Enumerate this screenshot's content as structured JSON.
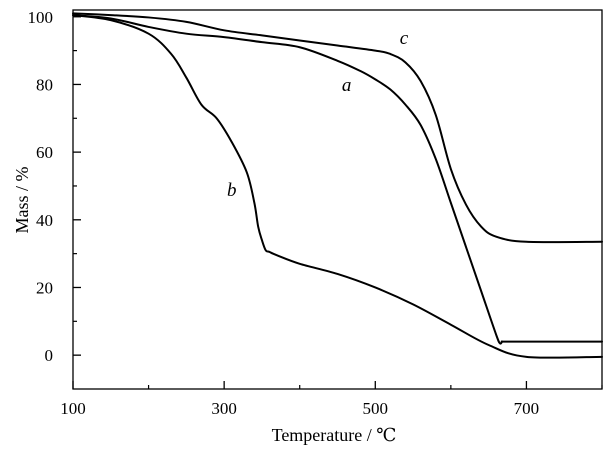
{
  "chart_data": {
    "type": "line",
    "title": "",
    "xlabel": "Temperature / ℃",
    "ylabel": "Mass / %",
    "xlim": [
      100,
      800
    ],
    "ylim": [
      -10,
      102
    ],
    "x_ticks": [
      100,
      300,
      500,
      700
    ],
    "x_minor_ticks": [
      200,
      400,
      600,
      800
    ],
    "y_ticks": [
      0,
      20,
      40,
      60,
      80,
      100
    ],
    "y_minor_ticks": [
      10,
      30,
      50,
      70,
      90
    ],
    "grid": false,
    "legend": "none",
    "line_color": "#000000",
    "series": [
      {
        "name": "a",
        "x": [
          100,
          150,
          200,
          250,
          300,
          350,
          400,
          450,
          480,
          500,
          520,
          540,
          560,
          580,
          600,
          620,
          640,
          660,
          665,
          668,
          670,
          700,
          800
        ],
        "y": [
          100.5,
          99.5,
          97,
          95,
          94,
          92.5,
          91,
          87,
          84,
          81.5,
          78.5,
          74,
          68,
          58,
          45,
          32,
          19,
          6,
          3.5,
          4,
          4,
          4,
          4
        ]
      },
      {
        "name": "b",
        "x": [
          100,
          150,
          200,
          230,
          250,
          270,
          290,
          310,
          330,
          340,
          345,
          350,
          355,
          360,
          370,
          400,
          450,
          500,
          550,
          600,
          650,
          700,
          800
        ],
        "y": [
          100.5,
          99,
          95,
          89,
          82,
          74,
          70,
          63,
          54,
          45,
          38,
          34,
          31,
          30.5,
          29.5,
          27,
          24,
          20,
          15,
          9,
          3,
          -0.5,
          -0.5
        ]
      },
      {
        "name": "c",
        "x": [
          100,
          150,
          200,
          250,
          300,
          350,
          400,
          450,
          500,
          520,
          540,
          560,
          580,
          600,
          620,
          640,
          660,
          700,
          800
        ],
        "y": [
          101,
          100.5,
          99.8,
          98.5,
          96,
          94.5,
          93,
          91.5,
          90,
          89,
          86.5,
          81,
          71,
          55,
          44.5,
          38,
          35,
          33.5,
          33.5
        ]
      }
    ],
    "annotations": [
      {
        "text": "a",
        "x": 462,
        "y": 78
      },
      {
        "text": "b",
        "x": 310,
        "y": 47
      },
      {
        "text": "c",
        "x": 538,
        "y": 92
      }
    ]
  }
}
